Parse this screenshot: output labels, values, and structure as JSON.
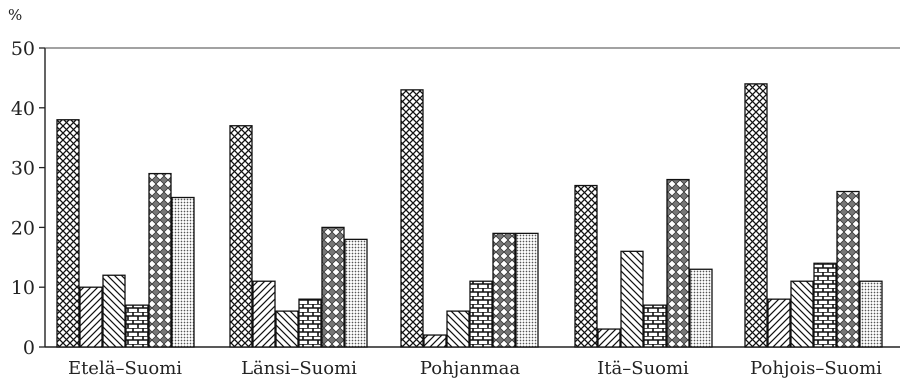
{
  "chart_data": {
    "type": "bar",
    "y_unit": "%",
    "ylim": [
      0,
      50
    ],
    "yticks": [
      "0",
      "10",
      "20",
      "30",
      "40",
      "50"
    ],
    "grid": false,
    "categories": [
      "Etelä–Suomi",
      "Länsi–Suomi",
      "Pohjanmaa",
      "Itä–Suomi",
      "Pohjois–Suomi"
    ],
    "series": [
      {
        "pattern": "crosshatch",
        "values": [
          38,
          37,
          43,
          27,
          44
        ]
      },
      {
        "pattern": "diagonal-up",
        "values": [
          10,
          11,
          2,
          3,
          8
        ]
      },
      {
        "pattern": "diagonal-down",
        "values": [
          12,
          6,
          6,
          16,
          11
        ]
      },
      {
        "pattern": "brick",
        "values": [
          7,
          8,
          11,
          7,
          14
        ]
      },
      {
        "pattern": "diamond",
        "values": [
          29,
          20,
          19,
          28,
          26
        ]
      },
      {
        "pattern": "dotted",
        "values": [
          25,
          18,
          19,
          13,
          11
        ]
      }
    ]
  }
}
